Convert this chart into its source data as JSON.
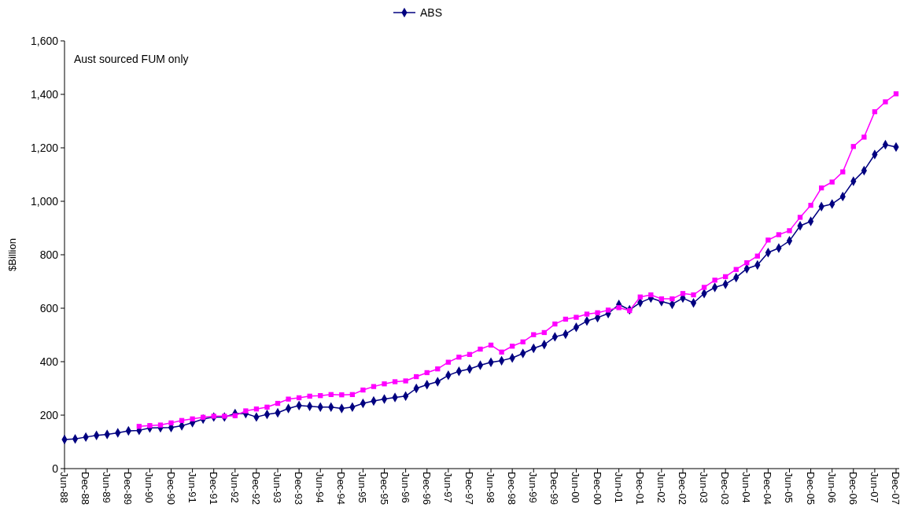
{
  "chart_data": {
    "type": "line",
    "ylabel": "$Billion",
    "annotations": [
      "Aust sourced FUM only"
    ],
    "categories": [
      "Jun-88",
      null,
      "Dec-88",
      null,
      "Jun-89",
      null,
      "Dec-89",
      null,
      "Jun-90",
      null,
      "Dec-90",
      null,
      "Jun-91",
      null,
      "Dec-91",
      null,
      "Jun-92",
      null,
      "Dec-92",
      null,
      "Jun-93",
      null,
      "Dec-93",
      null,
      "Jun-94",
      null,
      "Dec-94",
      null,
      "Jun-95",
      null,
      "Dec-95",
      null,
      "Jun-96",
      null,
      "Dec-96",
      null,
      "Jun-97",
      null,
      "Dec-97",
      null,
      "Jun-98",
      null,
      "Dec-98",
      null,
      "Jun-99",
      null,
      "Dec-99",
      null,
      "Jun-00",
      null,
      "Dec-00",
      null,
      "Jun-01",
      null,
      "Dec-01",
      null,
      "Jun-02",
      null,
      "Dec-02",
      null,
      "Jun-03",
      null,
      "Dec-03",
      null,
      "Jun-04",
      null,
      "Dec-04",
      null,
      "Jun-05",
      null,
      "Dec-05",
      null,
      "Jun-06",
      null,
      "Dec-06",
      null,
      "Jun-07",
      null,
      "Dec-07"
    ],
    "series": [
      {
        "name": "ABS",
        "color": "#000080",
        "marker": "diamond",
        "values": [
          109,
          111,
          118,
          124,
          128,
          134,
          141,
          143,
          152,
          153,
          154,
          160,
          172,
          185,
          193,
          193,
          206,
          206,
          193,
          203,
          209,
          225,
          236,
          233,
          230,
          230,
          225,
          230,
          244,
          253,
          260,
          266,
          271,
          300,
          314,
          325,
          349,
          364,
          373,
          387,
          398,
          404,
          414,
          431,
          450,
          464,
          493,
          503,
          529,
          552,
          565,
          580,
          614,
          594,
          621,
          638,
          625,
          615,
          638,
          620,
          655,
          678,
          690,
          715,
          748,
          762,
          808,
          825,
          852,
          908,
          925,
          980,
          990,
          1018,
          1075,
          1115,
          1175,
          1212,
          1203
        ]
      },
      {
        "color": "#ff00ff",
        "marker": "square",
        "values": [
          null,
          null,
          null,
          null,
          null,
          null,
          null,
          158,
          161,
          163,
          171,
          180,
          186,
          192,
          196,
          196,
          198,
          216,
          223,
          230,
          244,
          260,
          265,
          271,
          273,
          277,
          276,
          277,
          294,
          307,
          317,
          325,
          328,
          344,
          359,
          373,
          398,
          417,
          427,
          447,
          462,
          436,
          458,
          474,
          501,
          509,
          541,
          559,
          566,
          578,
          583,
          593,
          602,
          591,
          642,
          650,
          635,
          635,
          655,
          650,
          678,
          705,
          718,
          745,
          770,
          795,
          855,
          875,
          890,
          940,
          985,
          1050,
          1072,
          1110,
          1205,
          1240,
          1335,
          1372,
          1402
        ]
      }
    ],
    "ylim": [
      0,
      1600
    ],
    "yticks": [
      0,
      200,
      400,
      600,
      800,
      {
        "value": 1000,
        "label": "1,000"
      },
      {
        "value": 1200,
        "label": "1,200"
      },
      {
        "value": 1400,
        "label": "1,400"
      },
      {
        "value": 1600,
        "label": "1,600"
      }
    ],
    "legend": "top",
    "grid": false
  }
}
